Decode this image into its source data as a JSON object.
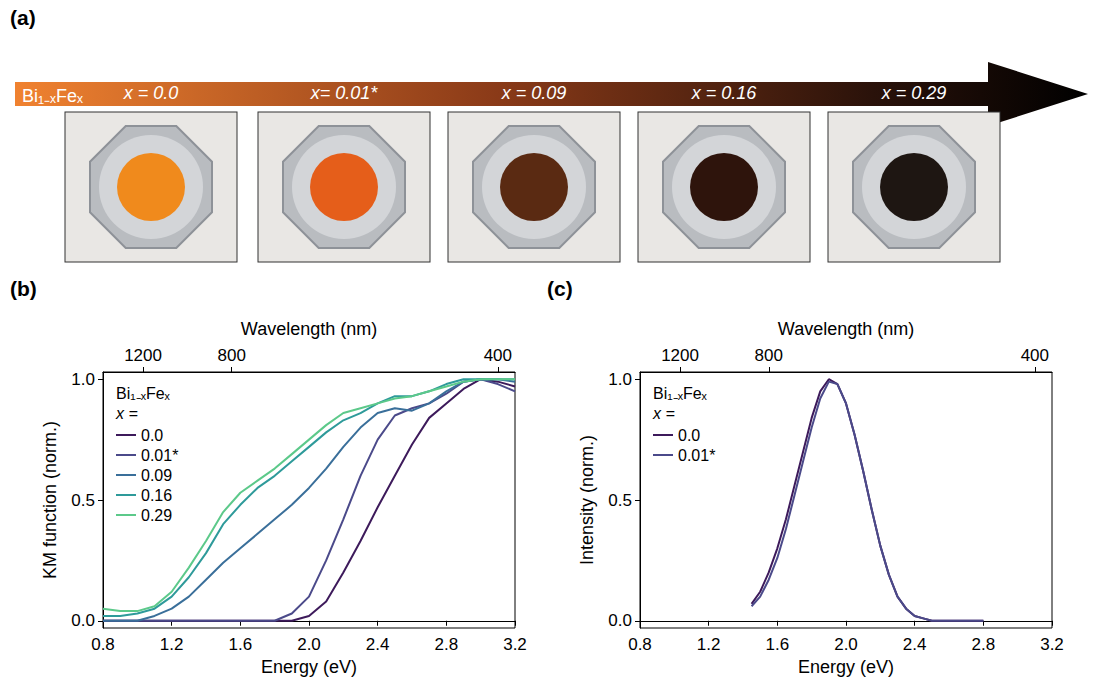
{
  "panel_a": {
    "label": "(a)",
    "arrow_label": "Bi₁₋ₓFeₓ",
    "samples": [
      {
        "label": "x = 0.0",
        "color": "#f08a1c"
      },
      {
        "label": "x= 0.01*",
        "color": "#e55e1a"
      },
      {
        "label": "x = 0.09",
        "color": "#5a2a12"
      },
      {
        "label": "x = 0.16",
        "color": "#2e140c"
      },
      {
        "label": "x = 0.29",
        "color": "#1e1612"
      }
    ]
  },
  "chart_data": [
    {
      "type": "line",
      "title": "(b)",
      "xlabel": "Energy (eV)",
      "ylabel": "KM function (norm.)",
      "x2label": "Wavelength (nm)",
      "legend": "upper left",
      "legend_title": "Bi₁₋ₓFeₓ",
      "legend_subtitle": "x =",
      "grid": false,
      "xlim": [
        0.8,
        3.2
      ],
      "xticks": [
        0.8,
        1.2,
        1.6,
        {
          "value": 2,
          "label": "2.0"
        },
        2.4,
        2.8,
        3.2
      ],
      "x2ticks": [
        1200,
        800,
        400
      ],
      "ylim": [
        -0.03,
        1.03
      ],
      "yticks": [
        {
          "value": 0,
          "label": "0.0"
        },
        0.5,
        {
          "value": 1,
          "label": "1.0"
        }
      ],
      "x": [
        0.8,
        0.9,
        1.0,
        1.1,
        1.2,
        1.3,
        1.4,
        1.5,
        1.6,
        1.7,
        1.8,
        1.9,
        2.0,
        2.1,
        2.2,
        2.3,
        2.4,
        2.5,
        2.6,
        2.7,
        2.8,
        2.9,
        3.0,
        3.1,
        3.2
      ],
      "series": [
        {
          "name": "0.0",
          "color": "#3d1a5b",
          "values": [
            0,
            0,
            0,
            0,
            0,
            0,
            0,
            0,
            0,
            0,
            0,
            0,
            0.02,
            0.08,
            0.2,
            0.33,
            0.47,
            0.6,
            0.73,
            0.84,
            0.9,
            0.96,
            1.0,
            0.99,
            0.97
          ]
        },
        {
          "name": "0.01*",
          "color": "#4b4a8a",
          "values": [
            0,
            0,
            0,
            0,
            0,
            0,
            0,
            0,
            0,
            0,
            0,
            0.03,
            0.1,
            0.25,
            0.42,
            0.6,
            0.75,
            0.85,
            0.88,
            0.9,
            0.94,
            0.99,
            1.0,
            0.98,
            0.95
          ]
        },
        {
          "name": "0.09",
          "color": "#3a6f9a",
          "values": [
            0,
            0,
            0,
            0.02,
            0.05,
            0.1,
            0.17,
            0.24,
            0.3,
            0.36,
            0.42,
            0.48,
            0.55,
            0.63,
            0.72,
            0.8,
            0.86,
            0.88,
            0.87,
            0.9,
            0.95,
            0.99,
            1.0,
            1.0,
            0.99
          ]
        },
        {
          "name": "0.16",
          "color": "#2e9a9a",
          "values": [
            0.02,
            0.02,
            0.03,
            0.05,
            0.1,
            0.18,
            0.28,
            0.4,
            0.48,
            0.55,
            0.6,
            0.66,
            0.72,
            0.78,
            0.83,
            0.86,
            0.9,
            0.93,
            0.93,
            0.95,
            0.98,
            1.0,
            1.0,
            1.0,
            1.0
          ]
        },
        {
          "name": "0.29",
          "color": "#5cc98a",
          "values": [
            0.05,
            0.04,
            0.04,
            0.06,
            0.12,
            0.22,
            0.33,
            0.45,
            0.53,
            0.58,
            0.63,
            0.69,
            0.75,
            0.81,
            0.86,
            0.88,
            0.9,
            0.92,
            0.93,
            0.95,
            0.97,
            0.99,
            1.0,
            1.0,
            1.0
          ]
        }
      ]
    },
    {
      "type": "line",
      "title": "(c)",
      "xlabel": "Energy (eV)",
      "ylabel": "Intensity (norm.)",
      "x2label": "Wavelength (nm)",
      "legend": "upper left",
      "legend_title": "Bi₁₋ₓFeₓ",
      "legend_subtitle": "x =",
      "grid": false,
      "xlim": [
        0.8,
        3.2
      ],
      "xticks": [
        0.8,
        1.2,
        1.6,
        {
          "value": 2,
          "label": "2.0"
        },
        2.4,
        2.8,
        3.2
      ],
      "x2ticks": [
        1200,
        800,
        400
      ],
      "ylim": [
        -0.03,
        1.03
      ],
      "yticks": [
        {
          "value": 0,
          "label": "0.0"
        },
        0.5,
        {
          "value": 1,
          "label": "1.0"
        }
      ],
      "x": [
        1.45,
        1.5,
        1.55,
        1.6,
        1.65,
        1.7,
        1.75,
        1.8,
        1.85,
        1.9,
        1.95,
        2.0,
        2.05,
        2.1,
        2.15,
        2.2,
        2.25,
        2.3,
        2.35,
        2.4,
        2.45,
        2.5,
        2.55,
        2.6,
        2.65,
        2.7,
        2.75,
        2.8
      ],
      "series": [
        {
          "name": "0.0",
          "color": "#3d1a5b",
          "values": [
            0.07,
            0.12,
            0.2,
            0.3,
            0.42,
            0.56,
            0.7,
            0.84,
            0.95,
            1.0,
            0.98,
            0.9,
            0.77,
            0.62,
            0.46,
            0.31,
            0.19,
            0.1,
            0.05,
            0.02,
            0.01,
            0,
            0,
            0,
            0,
            0,
            0,
            0
          ]
        },
        {
          "name": "0.01*",
          "color": "#4b4a8a",
          "values": [
            0.06,
            0.1,
            0.17,
            0.26,
            0.38,
            0.52,
            0.66,
            0.8,
            0.92,
            0.99,
            0.98,
            0.9,
            0.77,
            0.62,
            0.46,
            0.31,
            0.19,
            0.1,
            0.05,
            0.02,
            0.01,
            0,
            0,
            0,
            0,
            0,
            0,
            0
          ]
        }
      ]
    }
  ]
}
